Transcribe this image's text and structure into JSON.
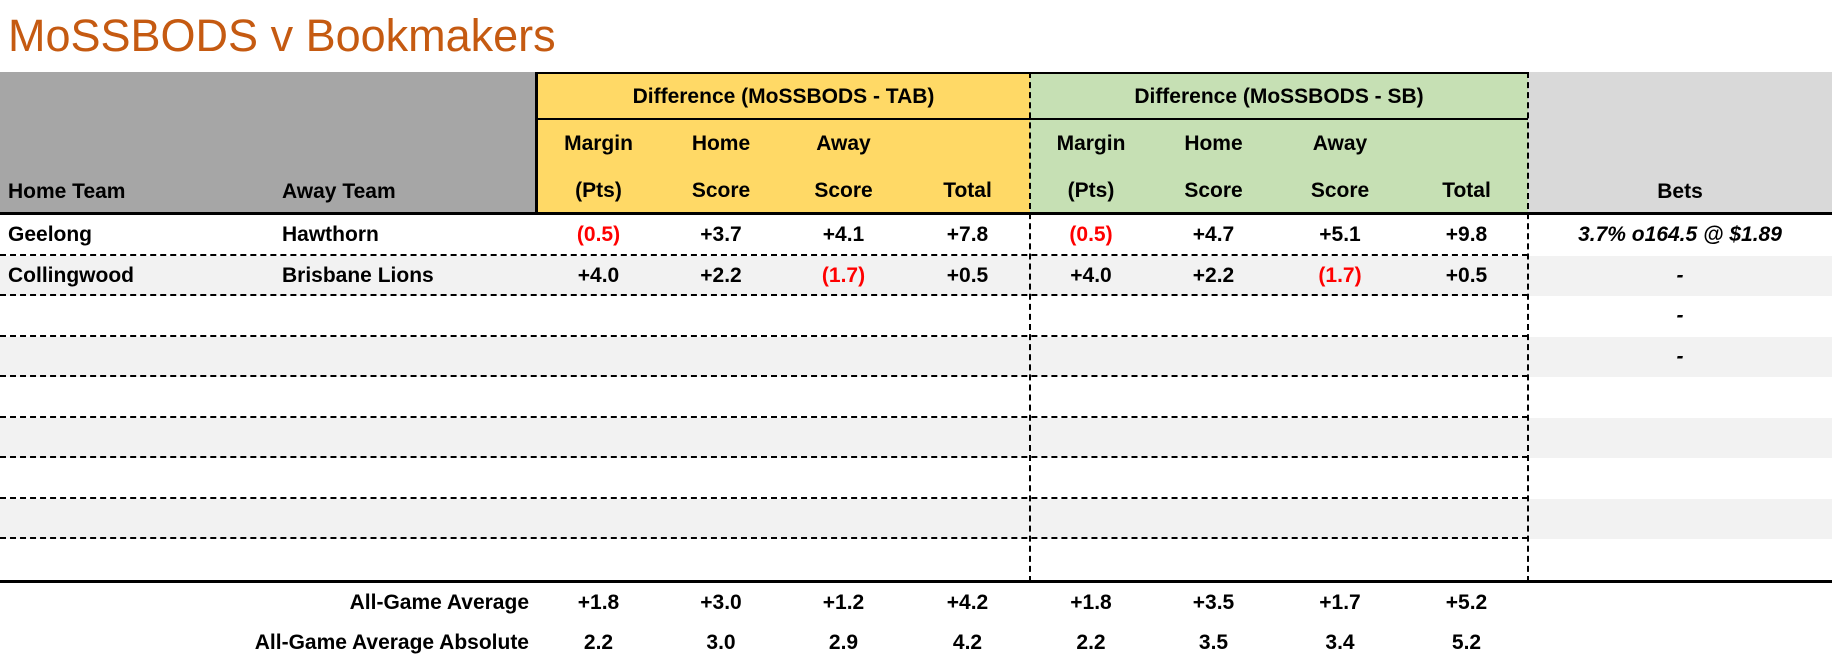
{
  "title": "MoSSBODS v Bookmakers",
  "colors": {
    "title_orange": "#C55A11",
    "tab_header_yellow": "#FFD966",
    "sb_header_green": "#C6E0B4",
    "team_header_gray": "#A6A6A6",
    "bets_header_gray": "#D9D9D9",
    "row_band_gray": "#F2F2F2",
    "negative_red": "#FF0000"
  },
  "header": {
    "home_team": "Home Team",
    "away_team": "Away Team",
    "tab_group": "Difference (MoSSBODS - TAB)",
    "sb_group": "Difference (MoSSBODS - SB)",
    "sub_cols": [
      {
        "line1": "Margin",
        "line2": "(Pts)"
      },
      {
        "line1": "Home",
        "line2": "Score"
      },
      {
        "line1": "Away",
        "line2": "Score"
      },
      {
        "line1": "",
        "line2": "Total"
      }
    ],
    "bets": "Bets"
  },
  "rows": [
    {
      "home": "Geelong",
      "away": "Hawthorn",
      "tab": [
        "(0.5)",
        "+3.7",
        "+4.1",
        "+7.8"
      ],
      "sb": [
        "(0.5)",
        "+4.7",
        "+5.1",
        "+9.8"
      ],
      "bets": "3.7% o164.5 @ $1.89"
    },
    {
      "home": "Collingwood",
      "away": "Brisbane Lions",
      "tab": [
        "+4.0",
        "+2.2",
        "(1.7)",
        "+0.5"
      ],
      "sb": [
        "+4.0",
        "+2.2",
        "(1.7)",
        "+0.5"
      ],
      "bets": "-"
    },
    {
      "home": "",
      "away": "",
      "tab": [
        "",
        "",
        "",
        ""
      ],
      "sb": [
        "",
        "",
        "",
        ""
      ],
      "bets": "-"
    },
    {
      "home": "",
      "away": "",
      "tab": [
        "",
        "",
        "",
        ""
      ],
      "sb": [
        "",
        "",
        "",
        ""
      ],
      "bets": "-"
    },
    {
      "home": "",
      "away": "",
      "tab": [
        "",
        "",
        "",
        ""
      ],
      "sb": [
        "",
        "",
        "",
        ""
      ],
      "bets": ""
    },
    {
      "home": "",
      "away": "",
      "tab": [
        "",
        "",
        "",
        ""
      ],
      "sb": [
        "",
        "",
        "",
        ""
      ],
      "bets": ""
    },
    {
      "home": "",
      "away": "",
      "tab": [
        "",
        "",
        "",
        ""
      ],
      "sb": [
        "",
        "",
        "",
        ""
      ],
      "bets": ""
    },
    {
      "home": "",
      "away": "",
      "tab": [
        "",
        "",
        "",
        ""
      ],
      "sb": [
        "",
        "",
        "",
        ""
      ],
      "bets": ""
    },
    {
      "home": "",
      "away": "",
      "tab": [
        "",
        "",
        "",
        ""
      ],
      "sb": [
        "",
        "",
        "",
        ""
      ],
      "bets": ""
    }
  ],
  "summary": [
    {
      "label": "All-Game Average",
      "tab": [
        "+1.8",
        "+3.0",
        "+1.2",
        "+4.2"
      ],
      "sb": [
        "+1.8",
        "+3.5",
        "+1.7",
        "+5.2"
      ]
    },
    {
      "label": "All-Game Average Absolute",
      "tab": [
        "2.2",
        "3.0",
        "2.9",
        "4.2"
      ],
      "sb": [
        "2.2",
        "3.5",
        "3.4",
        "5.2"
      ]
    }
  ]
}
